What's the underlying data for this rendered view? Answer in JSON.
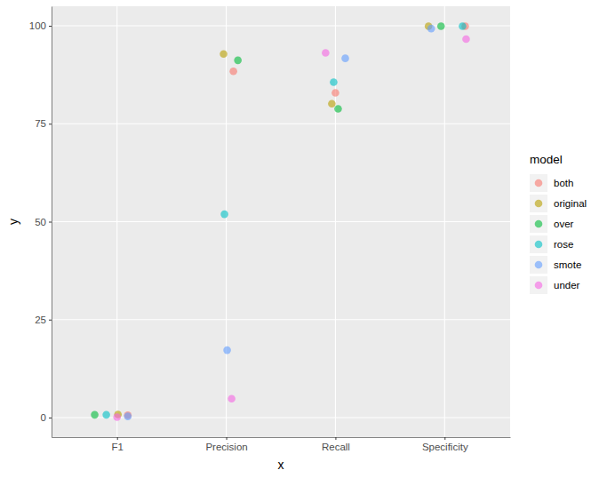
{
  "chart_data": {
    "type": "scatter",
    "x_label": "x",
    "y_label": "y",
    "legend_title": "model",
    "categories": [
      "F1",
      "Precision",
      "Recall",
      "Specificity"
    ],
    "series": [
      {
        "name": "both",
        "color": "#F8766D",
        "values": [
          0.6,
          88.4,
          82.9,
          99.9
        ]
      },
      {
        "name": "original",
        "color": "#B79F00",
        "values": [
          0.8,
          92.8,
          80.1,
          99.9
        ]
      },
      {
        "name": "over",
        "color": "#00BA38",
        "values": [
          0.7,
          91.2,
          78.8,
          99.9
        ]
      },
      {
        "name": "rose",
        "color": "#00BFC4",
        "values": [
          0.7,
          51.9,
          85.6,
          99.9
        ]
      },
      {
        "name": "smote",
        "color": "#619CFF",
        "values": [
          0.3,
          17.2,
          91.7,
          99.3
        ]
      },
      {
        "name": "under",
        "color": "#F564E3",
        "values": [
          0.1,
          4.8,
          93.1,
          96.6
        ]
      }
    ],
    "ylim": [
      -5,
      105
    ],
    "yticks": [
      0,
      25,
      50,
      75,
      100
    ],
    "grid": true,
    "legend": "right",
    "marker": "circle"
  }
}
